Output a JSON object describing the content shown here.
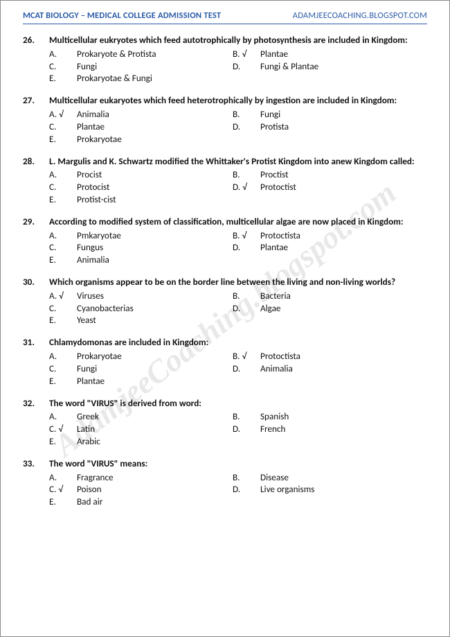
{
  "header": {
    "left_main": "MCAT B",
    "left_sub1": "IOLOGY",
    "left_dash": " – ",
    "left_sub2": "MEDICAL COLLEGE ADMISSION TEST",
    "right": "ADAMJEECOACHING.BLOGSPOT.COM"
  },
  "watermark": "AdamjeeCoaching.blogspot.com",
  "check_mark": "√",
  "questions": [
    {
      "num": "26.",
      "text": "Multicellular eukryotes which feed autotrophically by photosynthesis are included in Kingdom:",
      "rows": [
        [
          {
            "l": "A.",
            "t": "Prokaryote & Protista",
            "c": false
          },
          {
            "l": "B.",
            "t": "Plantae",
            "c": true
          }
        ],
        [
          {
            "l": "C.",
            "t": "Fungi",
            "c": false
          },
          {
            "l": "D.",
            "t": "Fungi & Plantae",
            "c": false
          }
        ],
        [
          {
            "l": "E.",
            "t": "Prokaryotae & Fungi",
            "c": false
          }
        ]
      ]
    },
    {
      "num": "27.",
      "text": "Multicellular eukaryotes which feed heterotrophically by ingestion are included in Kingdom:",
      "rows": [
        [
          {
            "l": "A.",
            "t": "Animalia",
            "c": true
          },
          {
            "l": "B.",
            "t": "Fungi",
            "c": false
          }
        ],
        [
          {
            "l": "C.",
            "t": "Plantae",
            "c": false
          },
          {
            "l": "D.",
            "t": "Protista",
            "c": false
          }
        ],
        [
          {
            "l": "E.",
            "t": "Prokaryotae",
            "c": false
          }
        ]
      ]
    },
    {
      "num": "28.",
      "text": "L. Margulis and K. Schwartz modified the Whittaker's Protist Kingdom into anew Kingdom called:",
      "rows": [
        [
          {
            "l": "A.",
            "t": "Procist",
            "c": false
          },
          {
            "l": "B.",
            "t": "Proctist",
            "c": false
          }
        ],
        [
          {
            "l": "C.",
            "t": "Protocist",
            "c": false
          },
          {
            "l": "D.",
            "t": "Protoctist",
            "c": true
          }
        ],
        [
          {
            "l": "E.",
            "t": "Protist-cist",
            "c": false
          }
        ]
      ]
    },
    {
      "num": "29.",
      "text": "According to modified system of classification, multicellular algae are now placed in Kingdom:",
      "rows": [
        [
          {
            "l": "A.",
            "t": "Pmkaryotae",
            "c": false
          },
          {
            "l": "B.",
            "t": "Protoctista",
            "c": true
          }
        ],
        [
          {
            "l": "C.",
            "t": "Fungus",
            "c": false
          },
          {
            "l": "D.",
            "t": "Plantae",
            "c": false
          }
        ],
        [
          {
            "l": "E.",
            "t": "Animalia",
            "c": false
          }
        ]
      ]
    },
    {
      "num": "30.",
      "text": "Which organisms appear to be on the border line between the living and non-living worlds?",
      "rows": [
        [
          {
            "l": "A.",
            "t": "Viruses",
            "c": true
          },
          {
            "l": "B.",
            "t": "Bacteria",
            "c": false
          }
        ],
        [
          {
            "l": "C.",
            "t": "Cyanobacterias",
            "c": false
          },
          {
            "l": "D.",
            "t": "Algae",
            "c": false
          }
        ],
        [
          {
            "l": "E.",
            "t": "Yeast",
            "c": false
          }
        ]
      ]
    },
    {
      "num": "31.",
      "text": "Chlamydomonas are included in Kingdom:",
      "rows": [
        [
          {
            "l": "A.",
            "t": "Prokaryotae",
            "c": false
          },
          {
            "l": "B.",
            "t": "Protoctista",
            "c": true
          }
        ],
        [
          {
            "l": "C.",
            "t": "Fungi",
            "c": false
          },
          {
            "l": "D.",
            "t": "Animalia",
            "c": false
          }
        ],
        [
          {
            "l": "E.",
            "t": "Plantae",
            "c": false
          }
        ]
      ]
    },
    {
      "num": "32.",
      "text": "The word \"VIRUS\" is derived from word:",
      "rows": [
        [
          {
            "l": "A.",
            "t": "Greek",
            "c": false
          },
          {
            "l": "B.",
            "t": "Spanish",
            "c": false
          }
        ],
        [
          {
            "l": "C.",
            "t": "Latin",
            "c": true
          },
          {
            "l": "D.",
            "t": "French",
            "c": false
          }
        ],
        [
          {
            "l": "E.",
            "t": "Arabic",
            "c": false
          }
        ]
      ]
    },
    {
      "num": "33.",
      "text": "The word \"VIRUS\" means:",
      "rows": [
        [
          {
            "l": "A.",
            "t": "Fragrance",
            "c": false
          },
          {
            "l": "B.",
            "t": "Disease",
            "c": false
          }
        ],
        [
          {
            "l": "C.",
            "t": "Poison",
            "c": true
          },
          {
            "l": "D.",
            "t": "Live organisms",
            "c": false
          }
        ],
        [
          {
            "l": "E.",
            "t": "Bad air",
            "c": false
          }
        ]
      ]
    }
  ]
}
